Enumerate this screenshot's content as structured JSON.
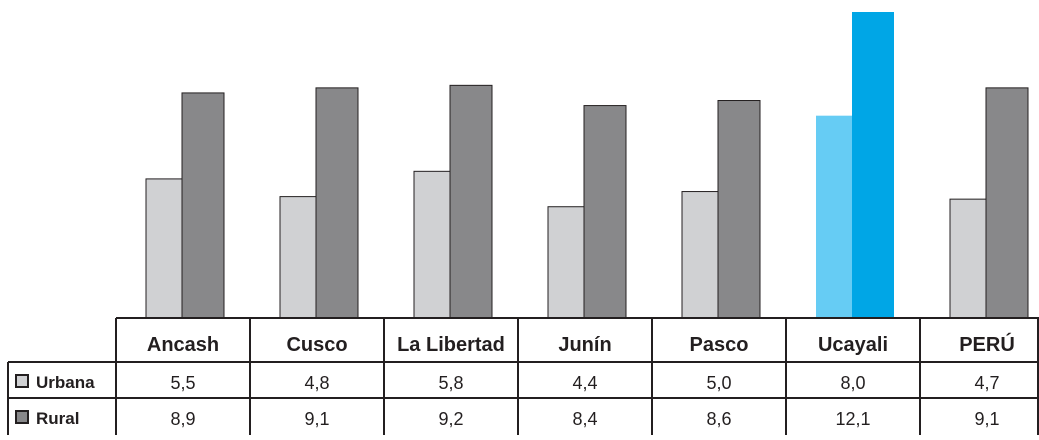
{
  "chart_data": {
    "type": "bar",
    "categories": [
      "Ancash",
      "Cusco",
      "La Libertad",
      "Junín",
      "Pasco",
      "Ucayali",
      "PERÚ"
    ],
    "series": [
      {
        "name": "Urbana",
        "values": [
          5.5,
          4.8,
          5.8,
          4.4,
          5.0,
          8.0,
          4.7
        ],
        "labels": [
          "5,5",
          "4,8",
          "5,8",
          "4,4",
          "5,0",
          "8,0",
          "4,7"
        ]
      },
      {
        "name": "Rural",
        "values": [
          8.9,
          9.1,
          9.2,
          8.4,
          8.6,
          12.1,
          9.1
        ],
        "labels": [
          "8,9",
          "9,1",
          "9,2",
          "8,4",
          "8,6",
          "12,1",
          "9,1"
        ]
      }
    ],
    "highlight_category": "Ucayali",
    "ylim": [
      0,
      12.1
    ],
    "grid": false,
    "legend_placement": "data-table-left",
    "colors": {
      "urbana": "#d0d1d3",
      "rural": "#88888a",
      "highlight_urbana": "#66ccf4",
      "highlight_rural": "#00a6e6",
      "border": "#231f20"
    }
  }
}
